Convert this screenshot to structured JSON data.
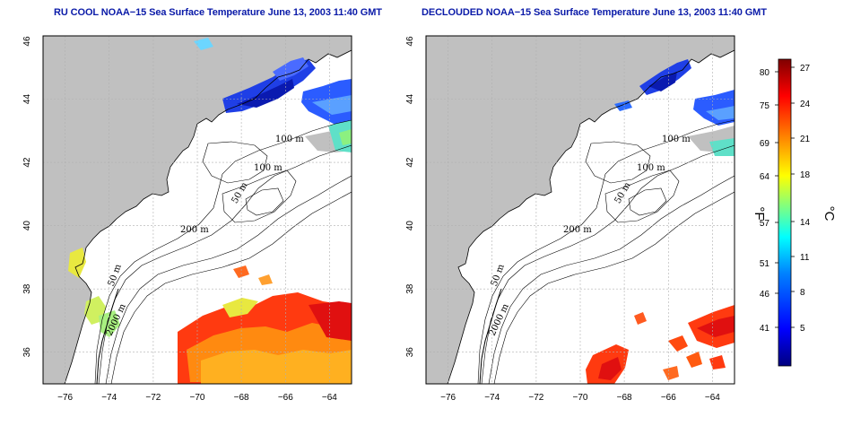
{
  "panels": [
    {
      "title": "RU COOL NOAA−15 Sea Surface Temperature June 13, 2003 11:40 GMT",
      "contour_labels": [
        "100 m",
        "100 m",
        "50 m",
        "200 m",
        "50 m",
        "2000 m"
      ]
    },
    {
      "title": "DECLOUDED NOAA−15 Sea Surface Temperature June 13, 2003 11:40 GMT",
      "contour_labels": [
        "100 m",
        "100 m",
        "50 m",
        "200 m",
        "50 m",
        "2000 m"
      ]
    }
  ],
  "axes": {
    "x_ticks": [
      "−76",
      "−74",
      "−72",
      "−70",
      "−68",
      "−66",
      "−64"
    ],
    "y_ticks": [
      "36",
      "38",
      "40",
      "42",
      "44",
      "46"
    ],
    "x_range": [
      -77,
      -63
    ],
    "y_range": [
      35,
      46
    ]
  },
  "colorbar": {
    "fahrenheit_ticks": [
      "80",
      "75",
      "69",
      "64",
      "57",
      "51",
      "46",
      "41"
    ],
    "celsius_ticks": [
      "27",
      "24",
      "21",
      "18",
      "14",
      "11",
      "8",
      "5"
    ],
    "fahrenheit_unit": "°F",
    "celsius_unit": "°C",
    "colormap": [
      "#00007f",
      "#0000ff",
      "#0080ff",
      "#00ffff",
      "#80ff80",
      "#ffff00",
      "#ff8000",
      "#ff0000",
      "#7f0000"
    ]
  },
  "colors": {
    "land": "#c0c0c0",
    "ocean": "#ffffff",
    "grid": "#b0b0b0",
    "title": "#0a1aa8"
  }
}
